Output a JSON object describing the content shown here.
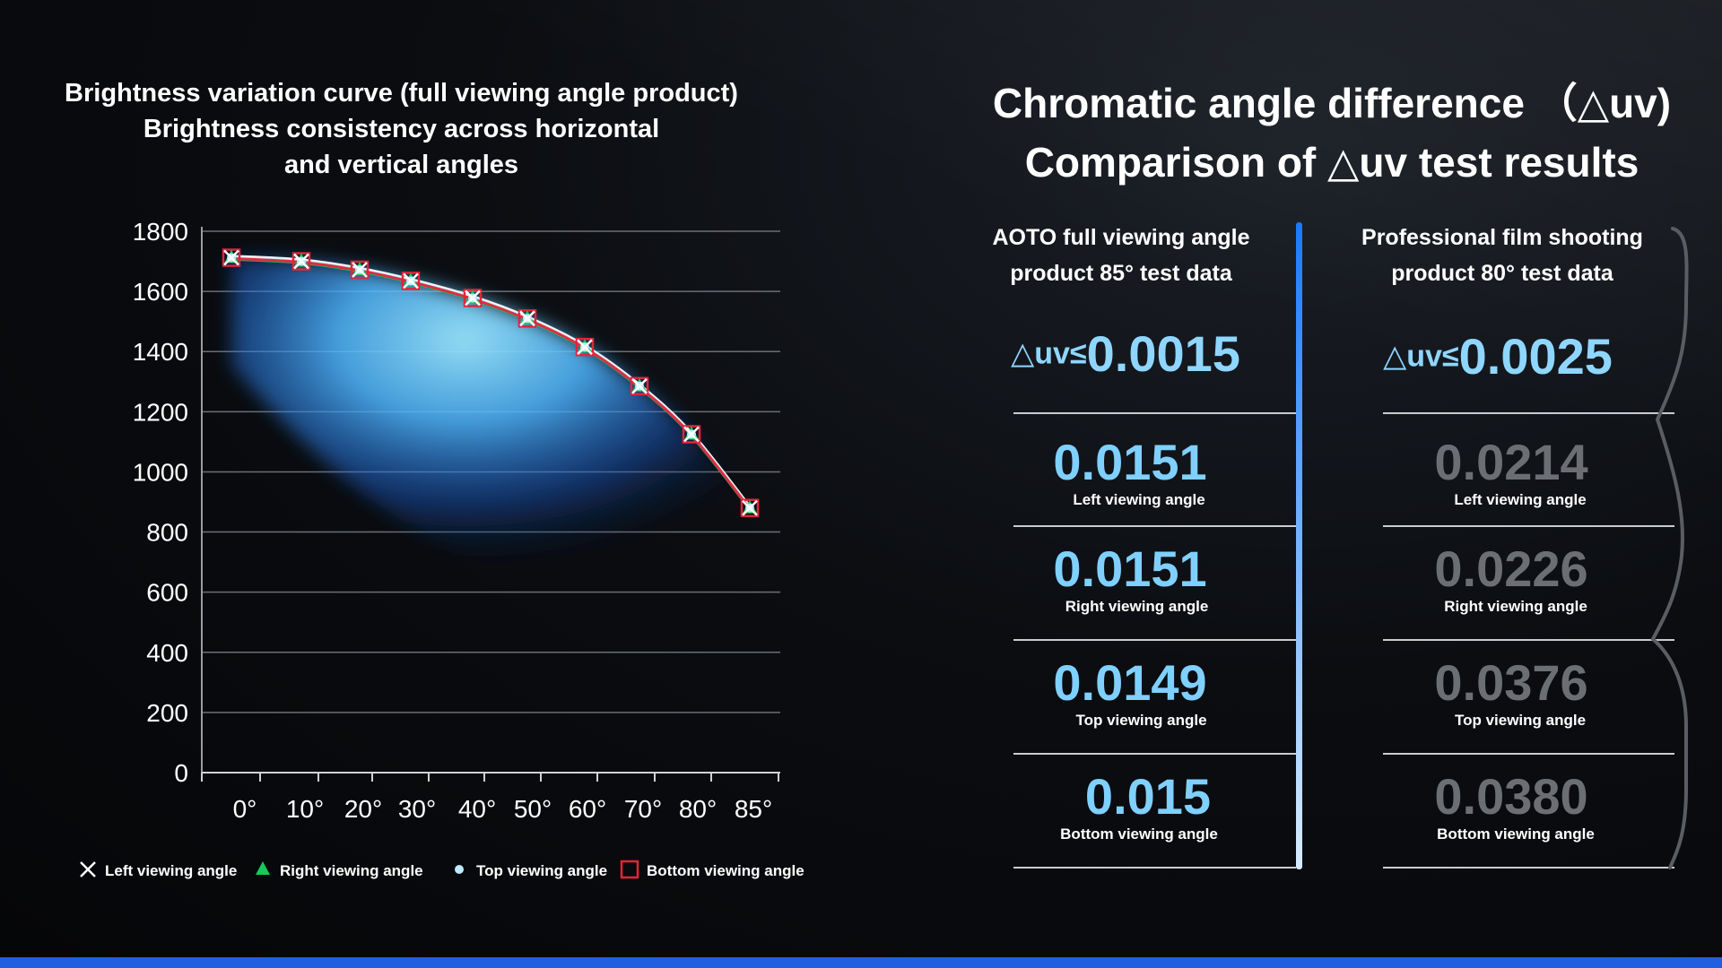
{
  "left": {
    "title_lines": [
      "Brightness variation curve (full viewing angle product)",
      "Brightness consistency across horizontal",
      "and vertical angles"
    ]
  },
  "chart_data": {
    "type": "line",
    "title": "",
    "xlabel": "",
    "ylabel": "",
    "categories": [
      "0°",
      "10°",
      "20°",
      "30°",
      "40°",
      "50°",
      "60°",
      "70°",
      "80°",
      "85°"
    ],
    "yticks": [
      "0",
      "200",
      "400",
      "600",
      "800",
      "1000",
      "1200",
      "1400",
      "1600",
      "1800"
    ],
    "ylim": [
      0,
      1800
    ],
    "grid": true,
    "legend_position": "bottom",
    "series": [
      {
        "name": "Left viewing angle",
        "marker": "x",
        "color": "#ffffff",
        "values": [
          1712,
          1700,
          1672,
          1635,
          1578,
          1510,
          1415,
          1285,
          1125,
          880
        ]
      },
      {
        "name": "Right viewing  angle",
        "marker": "triangle",
        "color": "#18c95a",
        "values": [
          1712,
          1700,
          1672,
          1635,
          1578,
          1510,
          1415,
          1285,
          1125,
          880
        ]
      },
      {
        "name": "Top viewing angle",
        "marker": "circle",
        "color": "#bfe9ff",
        "values": [
          1712,
          1700,
          1672,
          1635,
          1578,
          1510,
          1415,
          1285,
          1125,
          880
        ]
      },
      {
        "name": "Bottom viewing angle",
        "marker": "square",
        "color": "#e0253a",
        "values": [
          1712,
          1700,
          1672,
          1635,
          1578,
          1510,
          1415,
          1285,
          1125,
          880
        ]
      }
    ]
  },
  "right": {
    "title_lines": [
      "Chromatic angle difference （△uv)",
      "Comparison of △uv test results"
    ],
    "aoto": {
      "head_lines": [
        "AOTO full viewing angle",
        "product  85° test data"
      ],
      "delta_symbol": "△uv≤",
      "delta_value": "0.0015",
      "rows": [
        {
          "value": "0.0151",
          "label": "Left viewing angle"
        },
        {
          "value": "0.0151",
          "label": "Right viewing  angle"
        },
        {
          "value": "0.0149",
          "label": "Top viewing angle"
        },
        {
          "value": "0.015",
          "label": "Bottom viewing angle"
        }
      ]
    },
    "pro": {
      "head_lines": [
        "Professional film shooting",
        "product   80° test data"
      ],
      "delta_symbol": "△uv≤",
      "delta_value": "0.0025",
      "rows": [
        {
          "value": "0.0214",
          "label": "Left viewing angle"
        },
        {
          "value": "0.0226",
          "label": "Right viewing  angle"
        },
        {
          "value": "0.0376",
          "label": "Top viewing angle"
        },
        {
          "value": "0.0380",
          "label": "Bottom viewing angle"
        }
      ]
    }
  },
  "colors": {
    "accent_blue": "#1f5fe0",
    "value_blue": "#7fd0ff",
    "value_grey": "#6b6f74"
  }
}
